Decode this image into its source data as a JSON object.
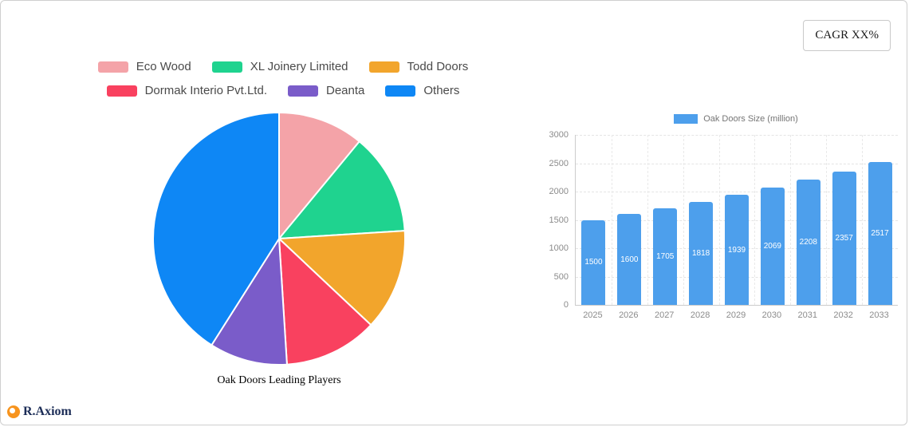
{
  "card": {
    "cagr_label": "CAGR XX%"
  },
  "logo": {
    "text": "R.Axiom"
  },
  "chart_data": [
    {
      "type": "pie",
      "title": "Oak Doors Leading Players",
      "labels": [
        "Eco Wood",
        "XL Joinery Limited",
        "Todd Doors",
        "Dormak Interio Pvt.Ltd.",
        "Deanta",
        "Others"
      ],
      "values": [
        11,
        13,
        13,
        12,
        10,
        41
      ],
      "colors": [
        "#f4a3a8",
        "#1fd38f",
        "#f2a52c",
        "#f9415f",
        "#7a5cc9",
        "#0e87f5"
      ],
      "legend_rows": [
        [
          0,
          1,
          2
        ],
        [
          3,
          4,
          5
        ]
      ],
      "legend_position": "top",
      "start_angle_deg": 0,
      "units": "percent-estimated"
    },
    {
      "type": "bar",
      "legend_label": "Oak Doors Size (million)",
      "categories": [
        "2025",
        "2026",
        "2027",
        "2028",
        "2029",
        "2030",
        "2031",
        "2032",
        "2033"
      ],
      "values": [
        1500,
        1600,
        1705,
        1818,
        1939,
        2069,
        2208,
        2357,
        2517
      ],
      "ylim": [
        0,
        3000
      ],
      "yticks": [
        0,
        500,
        1000,
        1500,
        2000,
        2500,
        3000
      ],
      "bar_color": "#4d9fec",
      "grid": true,
      "value_labels": "inside-white",
      "legend_position": "top"
    }
  ]
}
